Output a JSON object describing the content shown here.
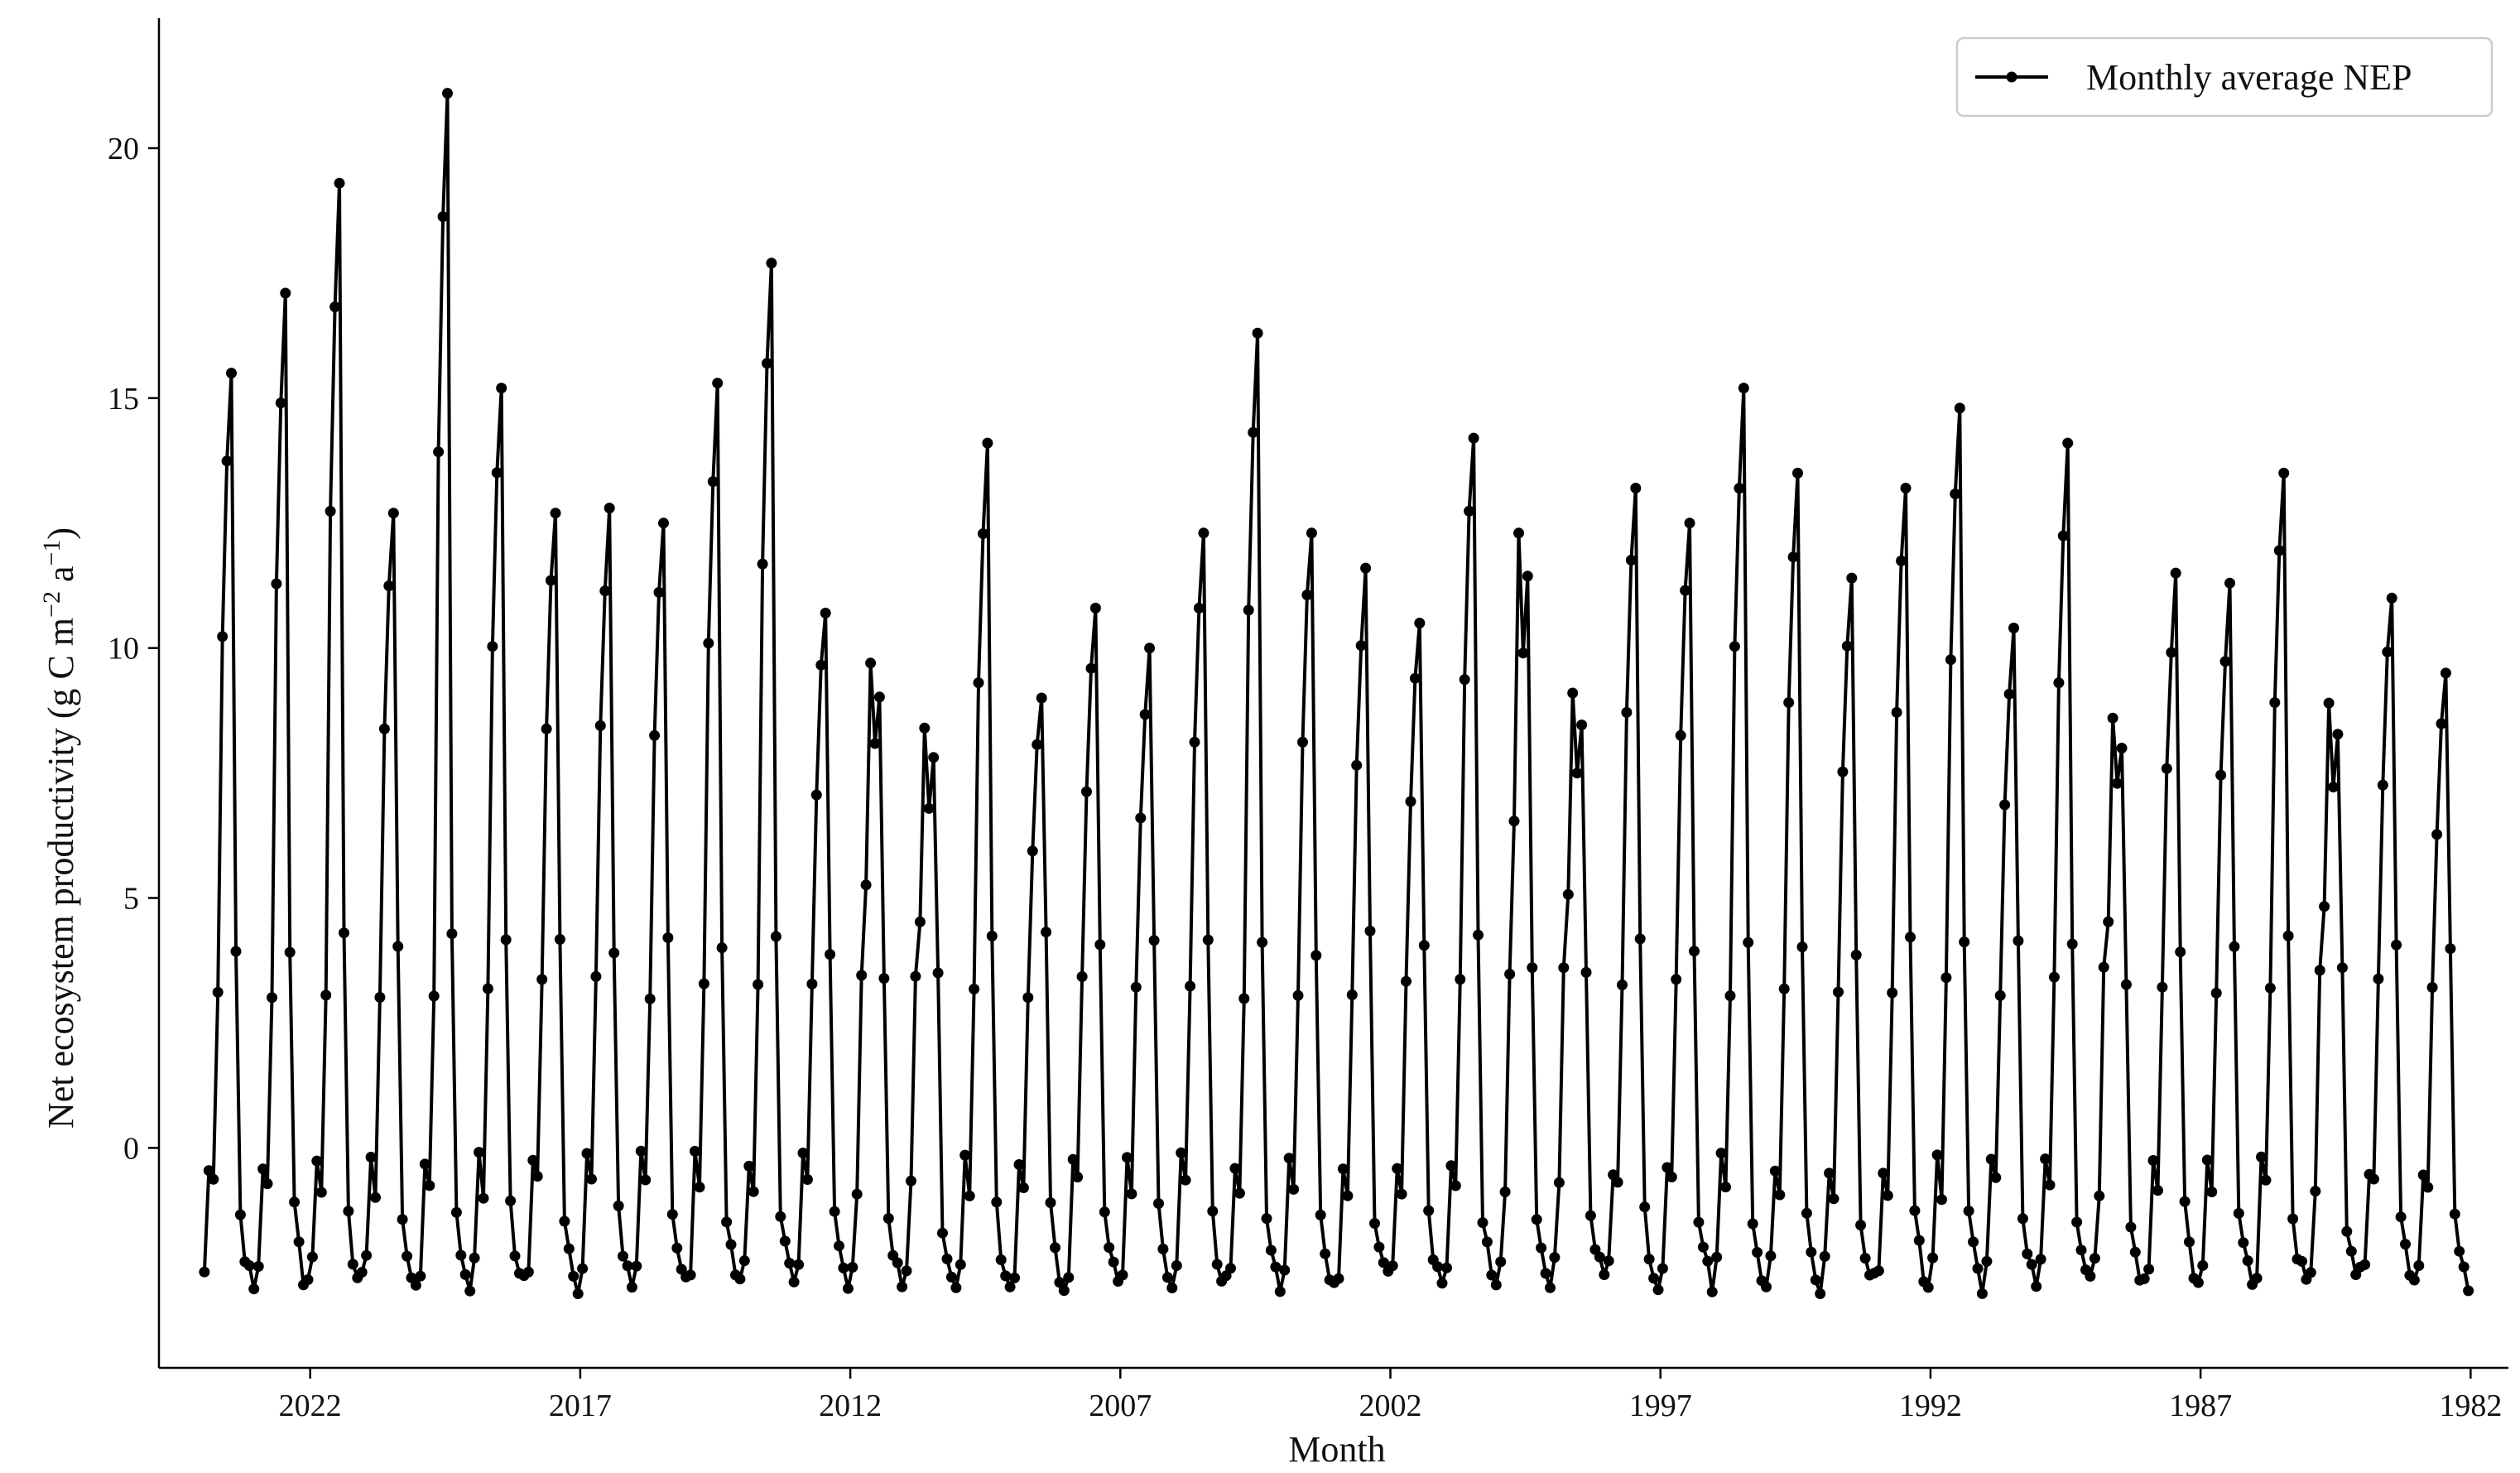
{
  "chart_data": {
    "type": "line",
    "title": "",
    "xlabel": "Month",
    "ylabel": "Net ecosystem productivity (g C m⁻² a⁻¹)",
    "ylabel_parts": {
      "pre": "Net ecosystem productivity (g C m",
      "sup1": "−2",
      "mid": " a",
      "sup2": "−1",
      "post": ")"
    },
    "x_axis_reversed": true,
    "xlim": [
      1981.3,
      2024.8
    ],
    "ylim": [
      -4.4,
      22.6
    ],
    "x_ticks": [
      {
        "value": 2022,
        "label": "2022"
      },
      {
        "value": 2017,
        "label": "2017"
      },
      {
        "value": 2012,
        "label": "2012"
      },
      {
        "value": 2007,
        "label": "2007"
      },
      {
        "value": 2002,
        "label": "2002"
      },
      {
        "value": 1997,
        "label": "1997"
      },
      {
        "value": 1992,
        "label": "1992"
      },
      {
        "value": 1987,
        "label": "1987"
      },
      {
        "value": 1982,
        "label": "1982"
      }
    ],
    "y_ticks": [
      {
        "value": 0,
        "label": "0"
      },
      {
        "value": 5,
        "label": "5"
      },
      {
        "value": 10,
        "label": "10"
      },
      {
        "value": 15,
        "label": "15"
      },
      {
        "value": 20,
        "label": "20"
      }
    ],
    "grid": false,
    "legend": {
      "position": "top-right"
    },
    "series": [
      {
        "name": "Monthly average NEP",
        "color": "#000000",
        "marker": "circle",
        "start_year": 1982,
        "annual_peaks": [
          {
            "year": 2023,
            "peak": 15.5,
            "shape": "narrow"
          },
          {
            "year": 2022,
            "peak": 17.1,
            "shape": "narrow"
          },
          {
            "year": 2021,
            "peak": 19.3,
            "shape": "narrow"
          },
          {
            "year": 2020,
            "peak": 12.7,
            "shape": "narrow"
          },
          {
            "year": 2019,
            "peak": 21.1,
            "shape": "narrow"
          },
          {
            "year": 2018,
            "peak": 15.2,
            "shape": "narrow"
          },
          {
            "year": 2017,
            "peak": 12.7,
            "shape": "narrow"
          },
          {
            "year": 2016,
            "peak": 12.8,
            "shape": "narrow"
          },
          {
            "year": 2015,
            "peak": 12.5,
            "shape": "narrow"
          },
          {
            "year": 2014,
            "peak": 15.3,
            "shape": "narrow"
          },
          {
            "year": 2013,
            "peak": 17.7,
            "shape": "narrow"
          },
          {
            "year": 2012,
            "peak": 10.7,
            "shape": "narrow"
          },
          {
            "year": 2011,
            "peak": 9.7,
            "shape": "flat"
          },
          {
            "year": 2010,
            "peak": 8.4,
            "shape": "flat"
          },
          {
            "year": 2009,
            "peak": 14.1,
            "shape": "narrow"
          },
          {
            "year": 2008,
            "peak": 9.0,
            "shape": "narrow"
          },
          {
            "year": 2007,
            "peak": 10.8,
            "shape": "narrow"
          },
          {
            "year": 2006,
            "peak": 10.0,
            "shape": "narrow"
          },
          {
            "year": 2005,
            "peak": 12.3,
            "shape": "narrow"
          },
          {
            "year": 2004,
            "peak": 16.3,
            "shape": "narrow"
          },
          {
            "year": 2003,
            "peak": 12.3,
            "shape": "narrow"
          },
          {
            "year": 2002,
            "peak": 11.6,
            "shape": "narrow"
          },
          {
            "year": 2001,
            "peak": 10.5,
            "shape": "narrow"
          },
          {
            "year": 2000,
            "peak": 14.2,
            "shape": "narrow"
          },
          {
            "year": 1999,
            "peak": 12.3,
            "shape": "flat"
          },
          {
            "year": 1998,
            "peak": 9.1,
            "shape": "flat"
          },
          {
            "year": 1997,
            "peak": 13.2,
            "shape": "narrow"
          },
          {
            "year": 1996,
            "peak": 12.5,
            "shape": "narrow"
          },
          {
            "year": 1995,
            "peak": 15.2,
            "shape": "narrow"
          },
          {
            "year": 1994,
            "peak": 13.5,
            "shape": "narrow"
          },
          {
            "year": 1993,
            "peak": 11.4,
            "shape": "narrow"
          },
          {
            "year": 1992,
            "peak": 13.2,
            "shape": "narrow"
          },
          {
            "year": 1991,
            "peak": 14.8,
            "shape": "narrow"
          },
          {
            "year": 1990,
            "peak": 10.4,
            "shape": "narrow"
          },
          {
            "year": 1989,
            "peak": 14.1,
            "shape": "narrow"
          },
          {
            "year": 1988,
            "peak": 8.6,
            "shape": "flat"
          },
          {
            "year": 1987,
            "peak": 11.5,
            "shape": "narrow"
          },
          {
            "year": 1986,
            "peak": 11.3,
            "shape": "narrow"
          },
          {
            "year": 1985,
            "peak": 13.5,
            "shape": "narrow"
          },
          {
            "year": 1984,
            "peak": 8.9,
            "shape": "flat"
          },
          {
            "year": 1983,
            "peak": 11.0,
            "shape": "narrow"
          },
          {
            "year": 1982,
            "peak": 9.5,
            "shape": "narrow"
          }
        ]
      }
    ]
  }
}
